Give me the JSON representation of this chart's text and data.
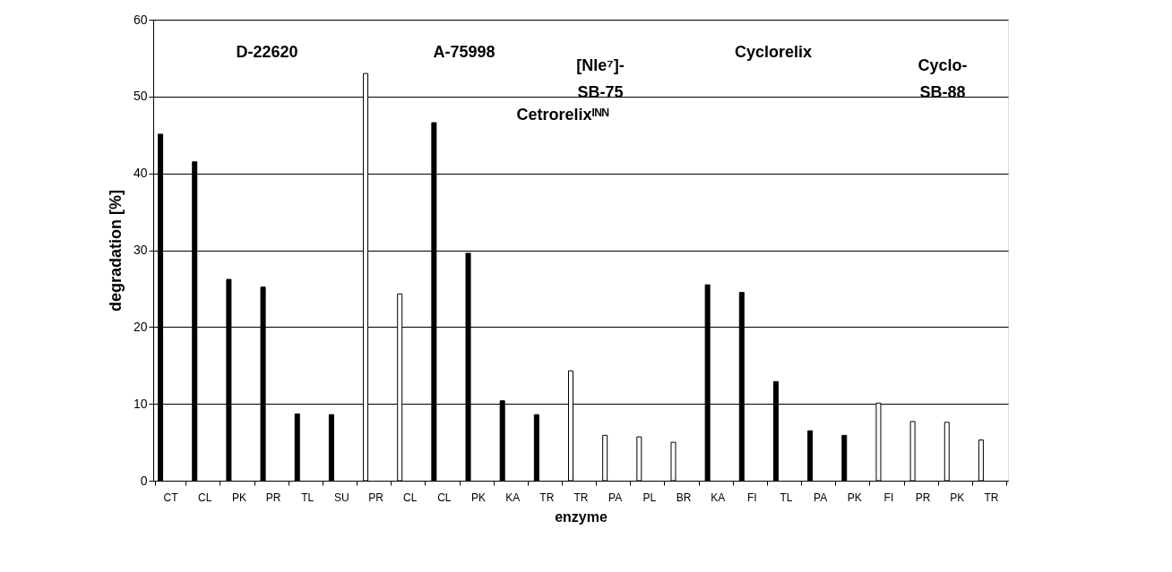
{
  "chart_data": {
    "type": "bar",
    "xlabel": "enzyme",
    "ylabel": "degradation [%]",
    "categories": [
      "CT",
      "CL",
      "PK",
      "PR",
      "TL",
      "SU",
      "PR",
      "CL",
      "CL",
      "PK",
      "KA",
      "TR",
      "TR",
      "PA",
      "PL",
      "BR",
      "KA",
      "FI",
      "TL",
      "PA",
      "PK",
      "FI",
      "PR",
      "PK",
      "TR"
    ],
    "values": [
      45.1,
      41.5,
      26.2,
      25.2,
      8.7,
      8.6,
      53.0,
      24.3,
      46.6,
      29.6,
      10.4,
      8.6,
      14.3,
      5.9,
      5.7,
      5.0,
      25.5,
      24.5,
      12.9,
      6.5,
      5.9,
      10.1,
      7.7,
      7.6,
      5.3
    ],
    "colors": [
      "#000000",
      "#000000",
      "#000000",
      "#000000",
      "#000000",
      "#000000",
      "#ffffff",
      "#ffffff",
      "#000000",
      "#000000",
      "#000000",
      "#000000",
      "#ffffff",
      "#ffffff",
      "#ffffff",
      "#ffffff",
      "#000000",
      "#000000",
      "#000000",
      "#000000",
      "#000000",
      "#ffffff",
      "#ffffff",
      "#ffffff",
      "#ffffff"
    ],
    "ylim": [
      0,
      60
    ],
    "yticks": [
      0,
      10,
      20,
      30,
      40,
      50,
      60
    ],
    "grid": "y",
    "annotations": [
      "D-22620",
      "A-75998",
      "Cetrorelixᴵᴺᴺ",
      "[Nle⁷]-\nSB-75",
      "Cyclorelix",
      "Cyclo-\nSB-88"
    ]
  }
}
